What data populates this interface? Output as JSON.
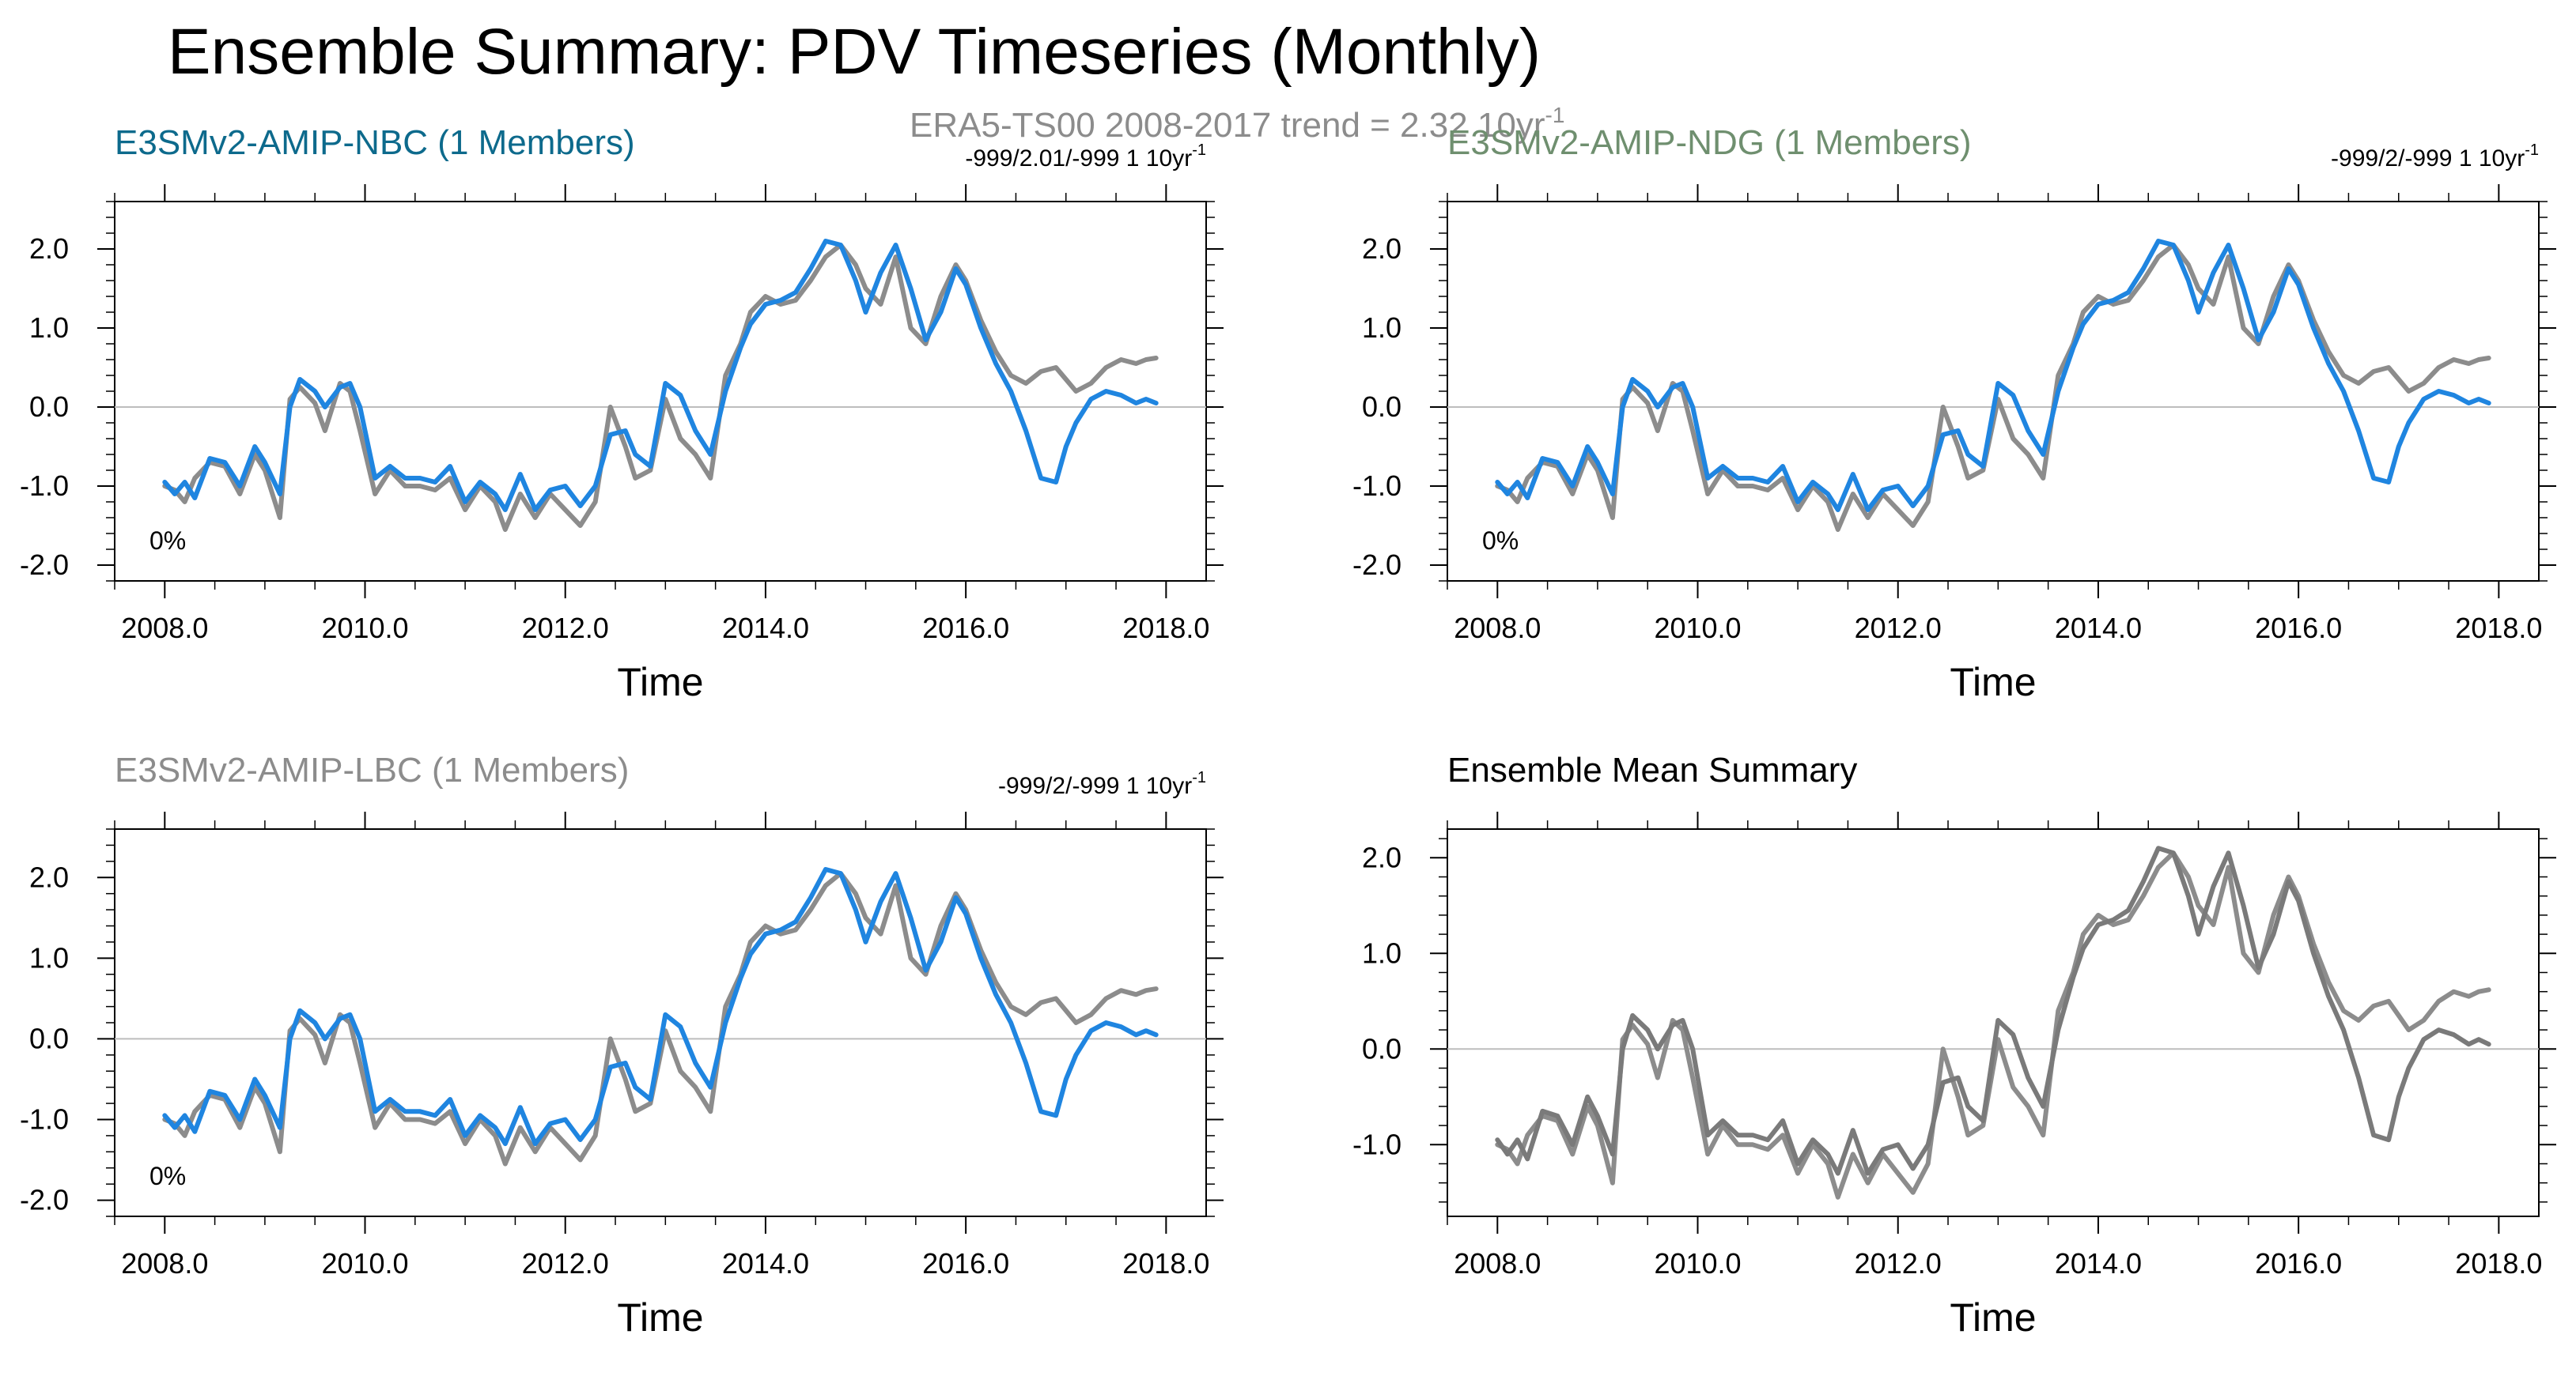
{
  "figure": {
    "title": "Ensemble Summary: PDV Timeseries (Monthly)",
    "subtitle_center": "ERA5-TS00 2008-2017 trend = 2.32 10yr",
    "subtitle_center_sup": "-1",
    "colors": {
      "obs": "#8c8c8c",
      "model": "#1f85e0",
      "nbc_title": "#0d6a8c",
      "ndg_title": "#6f8f6f",
      "lbc_title": "#8c8c8c",
      "mean_title": "#000000",
      "zero_line": "#bdbdbd"
    }
  },
  "chart_data": [
    {
      "type": "line",
      "title": "E3SMv2-AMIP-NBC (1 Members)",
      "stat_text": "-999/2.01/-999 1 10yr",
      "stat_sup": "-1",
      "corner_label": "0%",
      "xlabel": "Time",
      "ylabel": "",
      "xlim": [
        2007.5,
        2018.4
      ],
      "ylim": [
        -2.2,
        2.6
      ],
      "xticks": [
        2008,
        2010,
        2012,
        2014,
        2016,
        2018
      ],
      "xtick_labels": [
        "2008.0",
        "2010.0",
        "2012.0",
        "2014.0",
        "2016.0",
        "2018.0"
      ],
      "yticks": [
        -2,
        -1,
        0,
        1,
        2
      ],
      "ytick_labels": [
        "-2.0",
        "-1.0",
        "0.0",
        "1.0",
        "2.0"
      ],
      "series_keys": [
        "obs",
        "model"
      ]
    },
    {
      "type": "line",
      "title": "E3SMv2-AMIP-NDG (1 Members)",
      "stat_text": "-999/2/-999 1 10yr",
      "stat_sup": "-1",
      "corner_label": "0%",
      "xlabel": "Time",
      "ylabel": "",
      "xlim": [
        2007.5,
        2018.4
      ],
      "ylim": [
        -2.2,
        2.6
      ],
      "xticks": [
        2008,
        2010,
        2012,
        2014,
        2016,
        2018
      ],
      "xtick_labels": [
        "2008.0",
        "2010.0",
        "2012.0",
        "2014.0",
        "2016.0",
        "2018.0"
      ],
      "yticks": [
        -2,
        -1,
        0,
        1,
        2
      ],
      "ytick_labels": [
        "-2.0",
        "-1.0",
        "0.0",
        "1.0",
        "2.0"
      ],
      "series_keys": [
        "obs",
        "model"
      ]
    },
    {
      "type": "line",
      "title": "E3SMv2-AMIP-LBC (1 Members)",
      "stat_text": "-999/2/-999 1 10yr",
      "stat_sup": "-1",
      "corner_label": "0%",
      "xlabel": "Time",
      "ylabel": "",
      "xlim": [
        2007.5,
        2018.4
      ],
      "ylim": [
        -2.2,
        2.6
      ],
      "xticks": [
        2008,
        2010,
        2012,
        2014,
        2016,
        2018
      ],
      "xtick_labels": [
        "2008.0",
        "2010.0",
        "2012.0",
        "2014.0",
        "2016.0",
        "2018.0"
      ],
      "yticks": [
        -2,
        -1,
        0,
        1,
        2
      ],
      "ytick_labels": [
        "-2.0",
        "-1.0",
        "0.0",
        "1.0",
        "2.0"
      ],
      "series_keys": [
        "obs",
        "model"
      ]
    },
    {
      "type": "line",
      "title": "Ensemble Mean Summary",
      "stat_text": "",
      "stat_sup": "",
      "corner_label": "",
      "xlabel": "Time",
      "ylabel": "",
      "xlim": [
        2007.5,
        2018.4
      ],
      "ylim": [
        -1.75,
        2.3
      ],
      "xticks": [
        2008,
        2010,
        2012,
        2014,
        2016,
        2018
      ],
      "xtick_labels": [
        "2008.0",
        "2010.0",
        "2012.0",
        "2014.0",
        "2016.0",
        "2018.0"
      ],
      "yticks": [
        -1,
        0,
        1,
        2
      ],
      "ytick_labels": [
        "-1.0",
        "0.0",
        "1.0",
        "2.0"
      ],
      "series_keys": [
        "obs",
        "mean_model"
      ]
    }
  ],
  "series": {
    "obs": {
      "color": "#8c8c8c",
      "x": [
        2008.0,
        2008.1,
        2008.2,
        2008.3,
        2008.45,
        2008.6,
        2008.75,
        2008.9,
        2009.0,
        2009.15,
        2009.25,
        2009.35,
        2009.5,
        2009.6,
        2009.75,
        2009.85,
        2009.95,
        2010.1,
        2010.25,
        2010.4,
        2010.55,
        2010.7,
        2010.85,
        2011.0,
        2011.15,
        2011.3,
        2011.4,
        2011.55,
        2011.7,
        2011.85,
        2012.0,
        2012.15,
        2012.3,
        2012.45,
        2012.6,
        2012.7,
        2012.85,
        2013.0,
        2013.15,
        2013.3,
        2013.45,
        2013.6,
        2013.75,
        2013.85,
        2014.0,
        2014.15,
        2014.3,
        2014.45,
        2014.6,
        2014.75,
        2014.9,
        2015.0,
        2015.15,
        2015.3,
        2015.45,
        2015.6,
        2015.75,
        2015.9,
        2016.0,
        2016.15,
        2016.3,
        2016.45,
        2016.6,
        2016.75,
        2016.9,
        2017.0,
        2017.1,
        2017.25,
        2017.4,
        2017.55,
        2017.7,
        2017.8,
        2017.9
      ],
      "y": [
        -1.0,
        -1.05,
        -1.2,
        -0.9,
        -0.7,
        -0.75,
        -1.1,
        -0.6,
        -0.8,
        -1.4,
        0.1,
        0.25,
        0.05,
        -0.3,
        0.3,
        0.2,
        -0.3,
        -1.1,
        -0.8,
        -1.0,
        -1.0,
        -1.05,
        -0.9,
        -1.3,
        -1.0,
        -1.2,
        -1.55,
        -1.1,
        -1.4,
        -1.1,
        -1.3,
        -1.5,
        -1.2,
        0.0,
        -0.5,
        -0.9,
        -0.8,
        0.1,
        -0.4,
        -0.6,
        -0.9,
        0.4,
        0.8,
        1.2,
        1.4,
        1.3,
        1.35,
        1.6,
        1.9,
        2.05,
        1.8,
        1.5,
        1.3,
        1.9,
        1.0,
        0.8,
        1.4,
        1.8,
        1.6,
        1.1,
        0.7,
        0.4,
        0.3,
        0.45,
        0.5,
        0.35,
        0.2,
        0.3,
        0.5,
        0.6,
        0.55,
        0.6,
        0.62
      ]
    },
    "model": {
      "color": "#1f85e0",
      "x": [
        2008.0,
        2008.1,
        2008.2,
        2008.3,
        2008.45,
        2008.6,
        2008.75,
        2008.9,
        2009.0,
        2009.15,
        2009.25,
        2009.35,
        2009.5,
        2009.6,
        2009.75,
        2009.85,
        2009.95,
        2010.1,
        2010.25,
        2010.4,
        2010.55,
        2010.7,
        2010.85,
        2011.0,
        2011.15,
        2011.3,
        2011.4,
        2011.55,
        2011.7,
        2011.85,
        2012.0,
        2012.15,
        2012.3,
        2012.45,
        2012.6,
        2012.7,
        2012.85,
        2013.0,
        2013.15,
        2013.3,
        2013.45,
        2013.6,
        2013.75,
        2013.85,
        2014.0,
        2014.15,
        2014.3,
        2014.45,
        2014.6,
        2014.75,
        2014.9,
        2015.0,
        2015.15,
        2015.3,
        2015.45,
        2015.6,
        2015.75,
        2015.9,
        2016.0,
        2016.15,
        2016.3,
        2016.45,
        2016.6,
        2016.75,
        2016.9,
        2017.0,
        2017.1,
        2017.25,
        2017.4,
        2017.55,
        2017.7,
        2017.8,
        2017.9
      ],
      "y": [
        -0.95,
        -1.1,
        -0.95,
        -1.15,
        -0.65,
        -0.7,
        -1.0,
        -0.5,
        -0.7,
        -1.1,
        0.0,
        0.35,
        0.2,
        0.0,
        0.25,
        0.3,
        0.0,
        -0.9,
        -0.75,
        -0.9,
        -0.9,
        -0.95,
        -0.75,
        -1.2,
        -0.95,
        -1.1,
        -1.3,
        -0.85,
        -1.3,
        -1.05,
        -1.0,
        -1.25,
        -1.0,
        -0.35,
        -0.3,
        -0.6,
        -0.75,
        0.3,
        0.15,
        -0.3,
        -0.6,
        0.2,
        0.75,
        1.05,
        1.3,
        1.35,
        1.45,
        1.75,
        2.1,
        2.05,
        1.6,
        1.2,
        1.7,
        2.05,
        1.5,
        0.85,
        1.2,
        1.75,
        1.55,
        1.0,
        0.55,
        0.2,
        -0.3,
        -0.9,
        -0.95,
        -0.5,
        -0.2,
        0.1,
        0.2,
        0.15,
        0.05,
        0.1,
        0.05
      ]
    },
    "mean_model": {
      "color": "#7a7a7a",
      "x": [
        2008.0,
        2008.1,
        2008.2,
        2008.3,
        2008.45,
        2008.6,
        2008.75,
        2008.9,
        2009.0,
        2009.15,
        2009.25,
        2009.35,
        2009.5,
        2009.6,
        2009.75,
        2009.85,
        2009.95,
        2010.1,
        2010.25,
        2010.4,
        2010.55,
        2010.7,
        2010.85,
        2011.0,
        2011.15,
        2011.3,
        2011.4,
        2011.55,
        2011.7,
        2011.85,
        2012.0,
        2012.15,
        2012.3,
        2012.45,
        2012.6,
        2012.7,
        2012.85,
        2013.0,
        2013.15,
        2013.3,
        2013.45,
        2013.6,
        2013.75,
        2013.85,
        2014.0,
        2014.15,
        2014.3,
        2014.45,
        2014.6,
        2014.75,
        2014.9,
        2015.0,
        2015.15,
        2015.3,
        2015.45,
        2015.6,
        2015.75,
        2015.9,
        2016.0,
        2016.15,
        2016.3,
        2016.45,
        2016.6,
        2016.75,
        2016.9,
        2017.0,
        2017.1,
        2017.25,
        2017.4,
        2017.55,
        2017.7,
        2017.8,
        2017.9
      ],
      "y": [
        -0.95,
        -1.1,
        -0.95,
        -1.15,
        -0.65,
        -0.7,
        -1.0,
        -0.5,
        -0.7,
        -1.1,
        0.0,
        0.35,
        0.2,
        0.0,
        0.25,
        0.3,
        0.0,
        -0.9,
        -0.75,
        -0.9,
        -0.9,
        -0.95,
        -0.75,
        -1.2,
        -0.95,
        -1.1,
        -1.3,
        -0.85,
        -1.3,
        -1.05,
        -1.0,
        -1.25,
        -1.0,
        -0.35,
        -0.3,
        -0.6,
        -0.75,
        0.3,
        0.15,
        -0.3,
        -0.6,
        0.2,
        0.75,
        1.05,
        1.3,
        1.35,
        1.45,
        1.75,
        2.1,
        2.05,
        1.6,
        1.2,
        1.7,
        2.05,
        1.5,
        0.85,
        1.2,
        1.75,
        1.55,
        1.0,
        0.55,
        0.2,
        -0.3,
        -0.9,
        -0.95,
        -0.5,
        -0.2,
        0.1,
        0.2,
        0.15,
        0.05,
        0.1,
        0.05
      ]
    }
  }
}
